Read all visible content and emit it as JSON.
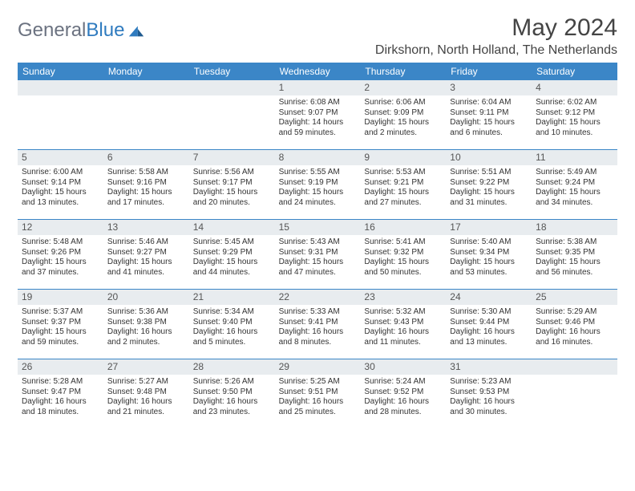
{
  "brand": {
    "text_a": "General",
    "text_b": "Blue"
  },
  "title": "May 2024",
  "location": "Dirkshorn, North Holland, The Netherlands",
  "colors": {
    "header_bg": "#3b86c7",
    "header_text": "#ffffff",
    "daynum_bg": "#e8ecef",
    "border": "#3b86c7",
    "body_text": "#333333",
    "title_text": "#444444",
    "logo_gray": "#6b7280",
    "logo_blue": "#2f7bbf"
  },
  "weekdays": [
    "Sunday",
    "Monday",
    "Tuesday",
    "Wednesday",
    "Thursday",
    "Friday",
    "Saturday"
  ],
  "weeks": [
    [
      {
        "n": "",
        "l1": "",
        "l2": "",
        "l3": "",
        "l4": ""
      },
      {
        "n": "",
        "l1": "",
        "l2": "",
        "l3": "",
        "l4": ""
      },
      {
        "n": "",
        "l1": "",
        "l2": "",
        "l3": "",
        "l4": ""
      },
      {
        "n": "1",
        "l1": "Sunrise: 6:08 AM",
        "l2": "Sunset: 9:07 PM",
        "l3": "Daylight: 14 hours",
        "l4": "and 59 minutes."
      },
      {
        "n": "2",
        "l1": "Sunrise: 6:06 AM",
        "l2": "Sunset: 9:09 PM",
        "l3": "Daylight: 15 hours",
        "l4": "and 2 minutes."
      },
      {
        "n": "3",
        "l1": "Sunrise: 6:04 AM",
        "l2": "Sunset: 9:11 PM",
        "l3": "Daylight: 15 hours",
        "l4": "and 6 minutes."
      },
      {
        "n": "4",
        "l1": "Sunrise: 6:02 AM",
        "l2": "Sunset: 9:12 PM",
        "l3": "Daylight: 15 hours",
        "l4": "and 10 minutes."
      }
    ],
    [
      {
        "n": "5",
        "l1": "Sunrise: 6:00 AM",
        "l2": "Sunset: 9:14 PM",
        "l3": "Daylight: 15 hours",
        "l4": "and 13 minutes."
      },
      {
        "n": "6",
        "l1": "Sunrise: 5:58 AM",
        "l2": "Sunset: 9:16 PM",
        "l3": "Daylight: 15 hours",
        "l4": "and 17 minutes."
      },
      {
        "n": "7",
        "l1": "Sunrise: 5:56 AM",
        "l2": "Sunset: 9:17 PM",
        "l3": "Daylight: 15 hours",
        "l4": "and 20 minutes."
      },
      {
        "n": "8",
        "l1": "Sunrise: 5:55 AM",
        "l2": "Sunset: 9:19 PM",
        "l3": "Daylight: 15 hours",
        "l4": "and 24 minutes."
      },
      {
        "n": "9",
        "l1": "Sunrise: 5:53 AM",
        "l2": "Sunset: 9:21 PM",
        "l3": "Daylight: 15 hours",
        "l4": "and 27 minutes."
      },
      {
        "n": "10",
        "l1": "Sunrise: 5:51 AM",
        "l2": "Sunset: 9:22 PM",
        "l3": "Daylight: 15 hours",
        "l4": "and 31 minutes."
      },
      {
        "n": "11",
        "l1": "Sunrise: 5:49 AM",
        "l2": "Sunset: 9:24 PM",
        "l3": "Daylight: 15 hours",
        "l4": "and 34 minutes."
      }
    ],
    [
      {
        "n": "12",
        "l1": "Sunrise: 5:48 AM",
        "l2": "Sunset: 9:26 PM",
        "l3": "Daylight: 15 hours",
        "l4": "and 37 minutes."
      },
      {
        "n": "13",
        "l1": "Sunrise: 5:46 AM",
        "l2": "Sunset: 9:27 PM",
        "l3": "Daylight: 15 hours",
        "l4": "and 41 minutes."
      },
      {
        "n": "14",
        "l1": "Sunrise: 5:45 AM",
        "l2": "Sunset: 9:29 PM",
        "l3": "Daylight: 15 hours",
        "l4": "and 44 minutes."
      },
      {
        "n": "15",
        "l1": "Sunrise: 5:43 AM",
        "l2": "Sunset: 9:31 PM",
        "l3": "Daylight: 15 hours",
        "l4": "and 47 minutes."
      },
      {
        "n": "16",
        "l1": "Sunrise: 5:41 AM",
        "l2": "Sunset: 9:32 PM",
        "l3": "Daylight: 15 hours",
        "l4": "and 50 minutes."
      },
      {
        "n": "17",
        "l1": "Sunrise: 5:40 AM",
        "l2": "Sunset: 9:34 PM",
        "l3": "Daylight: 15 hours",
        "l4": "and 53 minutes."
      },
      {
        "n": "18",
        "l1": "Sunrise: 5:38 AM",
        "l2": "Sunset: 9:35 PM",
        "l3": "Daylight: 15 hours",
        "l4": "and 56 minutes."
      }
    ],
    [
      {
        "n": "19",
        "l1": "Sunrise: 5:37 AM",
        "l2": "Sunset: 9:37 PM",
        "l3": "Daylight: 15 hours",
        "l4": "and 59 minutes."
      },
      {
        "n": "20",
        "l1": "Sunrise: 5:36 AM",
        "l2": "Sunset: 9:38 PM",
        "l3": "Daylight: 16 hours",
        "l4": "and 2 minutes."
      },
      {
        "n": "21",
        "l1": "Sunrise: 5:34 AM",
        "l2": "Sunset: 9:40 PM",
        "l3": "Daylight: 16 hours",
        "l4": "and 5 minutes."
      },
      {
        "n": "22",
        "l1": "Sunrise: 5:33 AM",
        "l2": "Sunset: 9:41 PM",
        "l3": "Daylight: 16 hours",
        "l4": "and 8 minutes."
      },
      {
        "n": "23",
        "l1": "Sunrise: 5:32 AM",
        "l2": "Sunset: 9:43 PM",
        "l3": "Daylight: 16 hours",
        "l4": "and 11 minutes."
      },
      {
        "n": "24",
        "l1": "Sunrise: 5:30 AM",
        "l2": "Sunset: 9:44 PM",
        "l3": "Daylight: 16 hours",
        "l4": "and 13 minutes."
      },
      {
        "n": "25",
        "l1": "Sunrise: 5:29 AM",
        "l2": "Sunset: 9:46 PM",
        "l3": "Daylight: 16 hours",
        "l4": "and 16 minutes."
      }
    ],
    [
      {
        "n": "26",
        "l1": "Sunrise: 5:28 AM",
        "l2": "Sunset: 9:47 PM",
        "l3": "Daylight: 16 hours",
        "l4": "and 18 minutes."
      },
      {
        "n": "27",
        "l1": "Sunrise: 5:27 AM",
        "l2": "Sunset: 9:48 PM",
        "l3": "Daylight: 16 hours",
        "l4": "and 21 minutes."
      },
      {
        "n": "28",
        "l1": "Sunrise: 5:26 AM",
        "l2": "Sunset: 9:50 PM",
        "l3": "Daylight: 16 hours",
        "l4": "and 23 minutes."
      },
      {
        "n": "29",
        "l1": "Sunrise: 5:25 AM",
        "l2": "Sunset: 9:51 PM",
        "l3": "Daylight: 16 hours",
        "l4": "and 25 minutes."
      },
      {
        "n": "30",
        "l1": "Sunrise: 5:24 AM",
        "l2": "Sunset: 9:52 PM",
        "l3": "Daylight: 16 hours",
        "l4": "and 28 minutes."
      },
      {
        "n": "31",
        "l1": "Sunrise: 5:23 AM",
        "l2": "Sunset: 9:53 PM",
        "l3": "Daylight: 16 hours",
        "l4": "and 30 minutes."
      },
      {
        "n": "",
        "l1": "",
        "l2": "",
        "l3": "",
        "l4": ""
      }
    ]
  ]
}
